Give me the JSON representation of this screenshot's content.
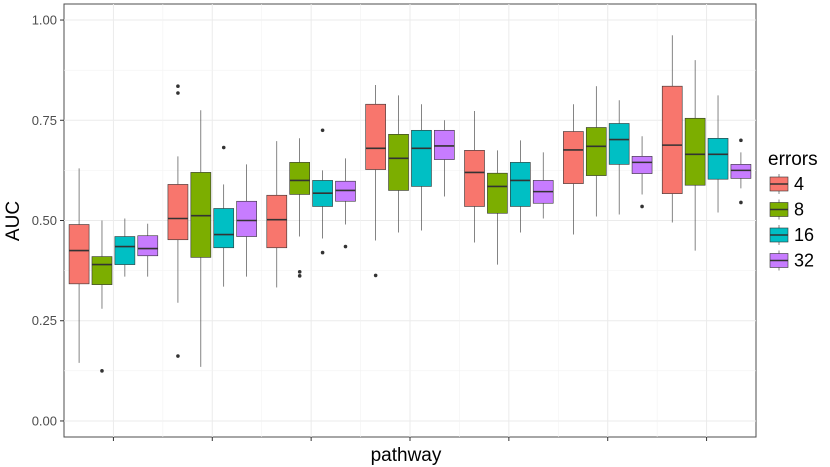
{
  "chart_data": {
    "type": "boxplot",
    "title": "",
    "xlabel": "pathway",
    "ylabel": "AUC",
    "ylim": [
      -0.04,
      1.04
    ],
    "yticks": [
      0.0,
      0.25,
      0.5,
      0.75,
      1.0
    ],
    "ytick_labels": [
      "0.00",
      "0.25",
      "0.50",
      "0.75",
      "1.00"
    ],
    "grid": true,
    "legend": {
      "title": "errors",
      "position": "right"
    },
    "groups": 7,
    "series": [
      {
        "name": "4",
        "color": "#F8766D",
        "boxes": [
          {
            "whislo": 0.145,
            "q1": 0.342,
            "med": 0.425,
            "q3": 0.49,
            "whishi": 0.63,
            "outliers": []
          },
          {
            "whislo": 0.295,
            "q1": 0.452,
            "med": 0.505,
            "q3": 0.59,
            "whishi": 0.66,
            "outliers": [
              0.162,
              0.818,
              0.835
            ]
          },
          {
            "whislo": 0.333,
            "q1": 0.432,
            "med": 0.502,
            "q3": 0.563,
            "whishi": 0.698,
            "outliers": []
          },
          {
            "whislo": 0.45,
            "q1": 0.627,
            "med": 0.68,
            "q3": 0.79,
            "whishi": 0.838,
            "outliers": [
              0.363
            ]
          },
          {
            "whislo": 0.445,
            "q1": 0.535,
            "med": 0.62,
            "q3": 0.675,
            "whishi": 0.773,
            "outliers": []
          },
          {
            "whislo": 0.465,
            "q1": 0.592,
            "med": 0.676,
            "q3": 0.722,
            "whishi": 0.79,
            "outliers": []
          },
          {
            "whislo": 0.495,
            "q1": 0.567,
            "med": 0.688,
            "q3": 0.835,
            "whishi": 0.962,
            "outliers": []
          }
        ]
      },
      {
        "name": "8",
        "color": "#7CAE00",
        "boxes": [
          {
            "whislo": 0.28,
            "q1": 0.34,
            "med": 0.39,
            "q3": 0.41,
            "whishi": 0.5,
            "outliers": [
              0.125
            ]
          },
          {
            "whislo": 0.135,
            "q1": 0.408,
            "med": 0.512,
            "q3": 0.62,
            "whishi": 0.775,
            "outliers": []
          },
          {
            "whislo": 0.46,
            "q1": 0.565,
            "med": 0.6,
            "q3": 0.645,
            "whishi": 0.705,
            "outliers": [
              0.362,
              0.372
            ]
          },
          {
            "whislo": 0.47,
            "q1": 0.575,
            "med": 0.655,
            "q3": 0.715,
            "whishi": 0.812,
            "outliers": []
          },
          {
            "whislo": 0.39,
            "q1": 0.518,
            "med": 0.585,
            "q3": 0.618,
            "whishi": 0.675,
            "outliers": []
          },
          {
            "whislo": 0.51,
            "q1": 0.612,
            "med": 0.685,
            "q3": 0.732,
            "whishi": 0.835,
            "outliers": []
          },
          {
            "whislo": 0.425,
            "q1": 0.588,
            "med": 0.665,
            "q3": 0.755,
            "whishi": 0.9,
            "outliers": []
          }
        ]
      },
      {
        "name": "16",
        "color": "#00BFC4",
        "boxes": [
          {
            "whislo": 0.36,
            "q1": 0.39,
            "med": 0.435,
            "q3": 0.46,
            "whishi": 0.505,
            "outliers": []
          },
          {
            "whislo": 0.335,
            "q1": 0.432,
            "med": 0.465,
            "q3": 0.53,
            "whishi": 0.59,
            "outliers": [
              0.682
            ]
          },
          {
            "whislo": 0.455,
            "q1": 0.535,
            "med": 0.568,
            "q3": 0.6,
            "whishi": 0.625,
            "outliers": [
              0.42,
              0.725
            ]
          },
          {
            "whislo": 0.475,
            "q1": 0.585,
            "med": 0.68,
            "q3": 0.725,
            "whishi": 0.79,
            "outliers": []
          },
          {
            "whislo": 0.47,
            "q1": 0.535,
            "med": 0.6,
            "q3": 0.645,
            "whishi": 0.7,
            "outliers": []
          },
          {
            "whislo": 0.515,
            "q1": 0.64,
            "med": 0.702,
            "q3": 0.742,
            "whishi": 0.8,
            "outliers": []
          },
          {
            "whislo": 0.52,
            "q1": 0.603,
            "med": 0.665,
            "q3": 0.705,
            "whishi": 0.812,
            "outliers": []
          }
        ]
      },
      {
        "name": "32",
        "color": "#C77CFF",
        "boxes": [
          {
            "whislo": 0.36,
            "q1": 0.412,
            "med": 0.43,
            "q3": 0.462,
            "whishi": 0.492,
            "outliers": []
          },
          {
            "whislo": 0.36,
            "q1": 0.46,
            "med": 0.5,
            "q3": 0.548,
            "whishi": 0.64,
            "outliers": []
          },
          {
            "whislo": 0.49,
            "q1": 0.548,
            "med": 0.575,
            "q3": 0.598,
            "whishi": 0.655,
            "outliers": [
              0.435
            ]
          },
          {
            "whislo": 0.56,
            "q1": 0.652,
            "med": 0.686,
            "q3": 0.725,
            "whishi": 0.75,
            "outliers": []
          },
          {
            "whislo": 0.505,
            "q1": 0.543,
            "med": 0.572,
            "q3": 0.6,
            "whishi": 0.67,
            "outliers": []
          },
          {
            "whislo": 0.565,
            "q1": 0.617,
            "med": 0.645,
            "q3": 0.66,
            "whishi": 0.71,
            "outliers": [
              0.535
            ]
          },
          {
            "whislo": 0.58,
            "q1": 0.605,
            "med": 0.625,
            "q3": 0.64,
            "whishi": 0.67,
            "outliers": [
              0.545,
              0.7
            ]
          }
        ]
      }
    ]
  }
}
